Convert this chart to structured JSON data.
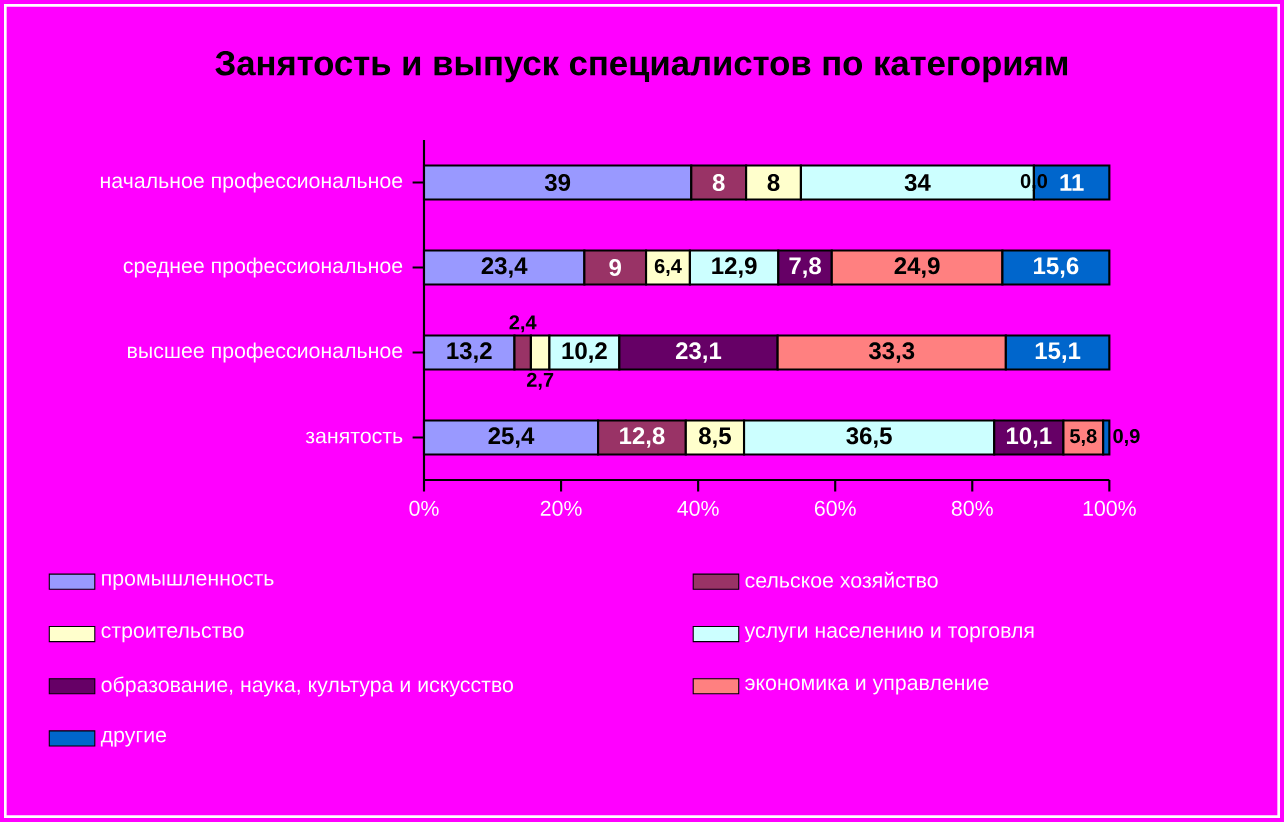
{
  "chart_data": {
    "type": "bar",
    "orientation": "horizontal",
    "stacked": true,
    "title": "Занятость и выпуск специалистов по категориям",
    "categories": [
      "начальное профессиональное",
      "среднее профессиональное",
      "высшее профессиональное",
      "занятость"
    ],
    "xlim": [
      0,
      100
    ],
    "xticks": [
      {
        "value": 0,
        "label": "0%"
      },
      {
        "value": 20,
        "label": "20%"
      },
      {
        "value": 40,
        "label": "40%"
      },
      {
        "value": 60,
        "label": "60%"
      },
      {
        "value": 80,
        "label": "80%"
      },
      {
        "value": 100,
        "label": "100%"
      }
    ],
    "legend": "bottom",
    "grid": false,
    "series": [
      {
        "name": "промышленность",
        "color": "#9999ff",
        "values": [
          39,
          23.4,
          13.2,
          25.4
        ],
        "value_labels": [
          "39",
          "23,4",
          "13,2",
          "25,4"
        ]
      },
      {
        "name": "сельское хозяйство",
        "color": "#993366",
        "values": [
          8,
          9,
          2.4,
          12.8
        ],
        "value_labels": [
          "8",
          "9",
          "2,4",
          "12,8"
        ]
      },
      {
        "name": "строительство",
        "color": "#ffffcc",
        "values": [
          8,
          6.4,
          2.7,
          8.5
        ],
        "value_labels": [
          "8",
          "6,4",
          "2,7",
          "8,5"
        ]
      },
      {
        "name": "услуги населению и торговля",
        "color": "#ccffff",
        "values": [
          34,
          12.9,
          10.2,
          36.5
        ],
        "value_labels": [
          "34",
          "12,9",
          "10,2",
          "36,5"
        ]
      },
      {
        "name": "образование, наука, культура и искусство",
        "color": "#660066",
        "values": [
          0.0,
          7.8,
          23.1,
          10.1
        ],
        "value_labels": [
          "0,0",
          "7,8",
          "23,1",
          "10,1"
        ]
      },
      {
        "name": "экономика и управление",
        "color": "#ff8080",
        "values": [
          null,
          24.9,
          33.3,
          5.8
        ],
        "value_labels": [
          null,
          "24,9",
          "33,3",
          "5,8"
        ]
      },
      {
        "name": "другие",
        "color": "#0066cc",
        "values": [
          11,
          15.6,
          15.1,
          0.9
        ],
        "value_labels": [
          "11",
          "15,6",
          "15,1",
          "0,9"
        ]
      }
    ]
  }
}
